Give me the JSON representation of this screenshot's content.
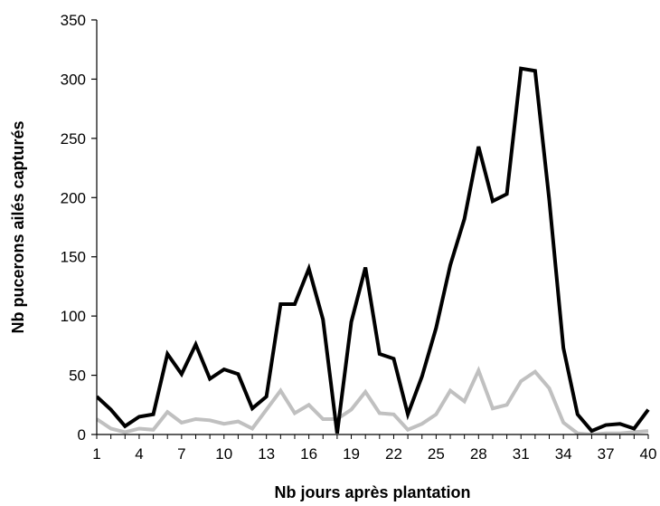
{
  "chart_data": {
    "type": "line",
    "xlabel": "Nb jours après plantation",
    "ylabel": "Nb pucerons ailés capturés",
    "ylim": [
      0,
      350
    ],
    "y_ticks": [
      0,
      50,
      100,
      150,
      200,
      250,
      300,
      350
    ],
    "xlim": [
      1,
      40
    ],
    "x_ticks": [
      1,
      4,
      7,
      10,
      13,
      16,
      19,
      22,
      25,
      28,
      31,
      34,
      37,
      40
    ],
    "grid": false,
    "legend": "none",
    "x": [
      1,
      2,
      3,
      4,
      5,
      6,
      7,
      8,
      9,
      10,
      11,
      12,
      13,
      14,
      15,
      16,
      17,
      18,
      19,
      20,
      21,
      22,
      23,
      24,
      25,
      26,
      27,
      28,
      29,
      30,
      31,
      32,
      33,
      34,
      35,
      36,
      37,
      38,
      39,
      40
    ],
    "series": [
      {
        "color": "#000000",
        "values": [
          32,
          21,
          7,
          15,
          17,
          68,
          51,
          76,
          47,
          55,
          51,
          22,
          32,
          110,
          110,
          140,
          97,
          1,
          95,
          141,
          68,
          64,
          17,
          49,
          90,
          143,
          182,
          243,
          197,
          203,
          309,
          307,
          198,
          73,
          17,
          3,
          8,
          9,
          5,
          21
        ]
      },
      {
        "color": "#c0c0c0",
        "values": [
          13,
          5,
          2,
          5,
          4,
          19,
          10,
          13,
          12,
          9,
          11,
          5,
          21,
          37,
          18,
          25,
          13,
          13,
          21,
          36,
          18,
          17,
          4,
          9,
          17,
          37,
          28,
          54,
          22,
          25,
          45,
          53,
          39,
          10,
          1,
          0,
          1,
          1,
          2,
          3
        ]
      }
    ]
  }
}
